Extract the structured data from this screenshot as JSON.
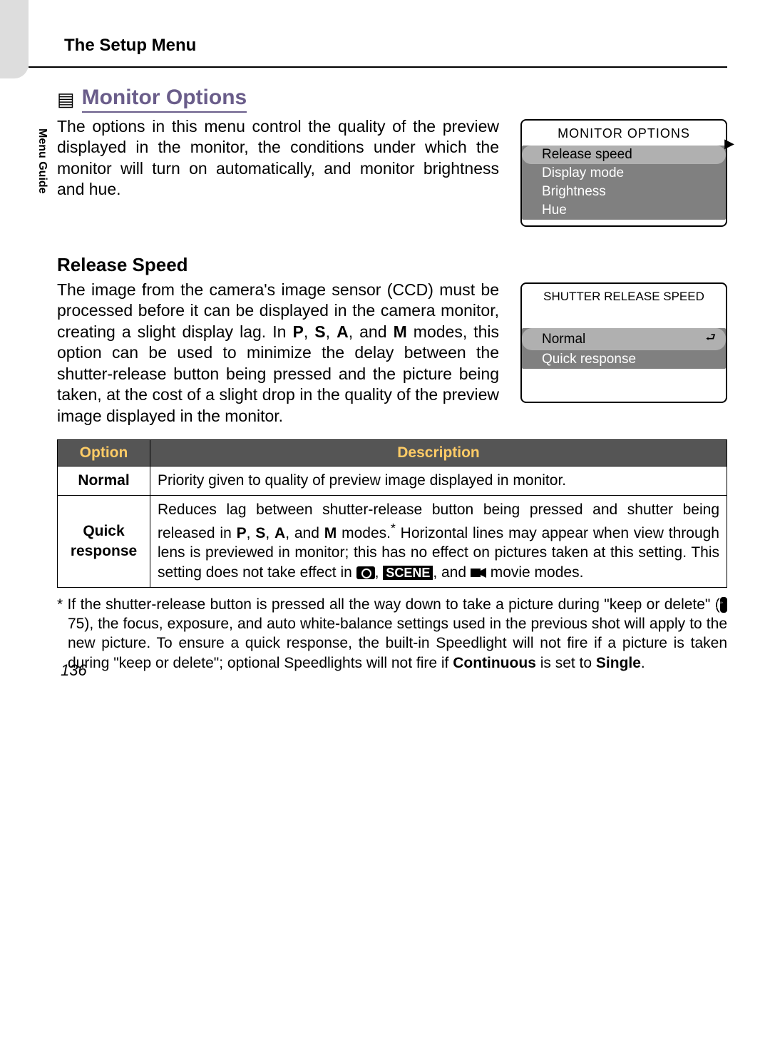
{
  "header_section": "The Setup Menu",
  "side_label": "Menu Guide",
  "main_title": "Monitor Options",
  "intro_text": "The options in this menu control the quality of the preview displayed in the monitor, the conditions under which the monitor will turn on automatically, and monitor brightness and hue.",
  "lcd1": {
    "title": "MONITOR OPTIONS",
    "items": [
      "Release speed",
      "Display mode",
      "Brightness",
      "Hue"
    ],
    "selected": 0
  },
  "sub_title": "Release Speed",
  "sub_text_html": "The image from the camera's image sensor (CCD) must be processed before it can be displayed in the camera monitor, creating a slight display lag. In <b>P</b>, <b>S</b>, <b>A</b>, and <b>M</b> modes, this option can be used to minimize the delay between the shutter-release button being pressed and the picture being taken, at the cost of a slight drop in the quality of the preview image displayed in the monitor.",
  "lcd2": {
    "title": "SHUTTER RELEASE SPEED",
    "items": [
      "Normal",
      "Quick response"
    ],
    "selected": 0
  },
  "table": {
    "headers": [
      "Option",
      "Description"
    ],
    "rows": [
      {
        "option": "Normal",
        "desc_html": "Priority given to quality of preview image displayed in monitor."
      },
      {
        "option": "Quick response",
        "desc_html": "Reduces lag between shutter-release button being pressed and shutter being released in <b>P</b>, <b>S</b>, <b>A</b>, and <b>M</b> modes.<sup>*</sup> Horizontal lines may appear when view through lens is previewed in monitor; this has no effect on pictures taken at this setting.  This setting does not take effect in <span class='inline-cam'></span>, <span class='inline-scene'>SCENE</span>, and <svg class='inline-movie' viewBox='0 0 22 18'><rect x='0' y='3' width='14' height='12' fill='#000'/><polygon points='14,6 22,2 22,16 14,12' fill='#000'/></svg> movie modes."
      }
    ]
  },
  "footnote_html": "* If the shutter-release button is pressed all the way down to take a picture during \"keep or delete\" (<span class='kbd-icon'>☞</span> 75), the focus, exposure, and auto white-balance settings used in the previous shot will apply to the new picture.  To ensure a quick response, the built-in Speedlight will not fire if a picture is taken during \"keep or delete\"; optional Speedlights will not fire if <b>Continuous</b> is set to <b>Single</b>.",
  "page_number": "136",
  "colors": {
    "title_color": "#6a5d8a",
    "th_bg": "#555555",
    "th_fg": "#ffcc66",
    "lcd_bg": "#808080",
    "lcd_sel_bg": "#b0b0b0"
  }
}
